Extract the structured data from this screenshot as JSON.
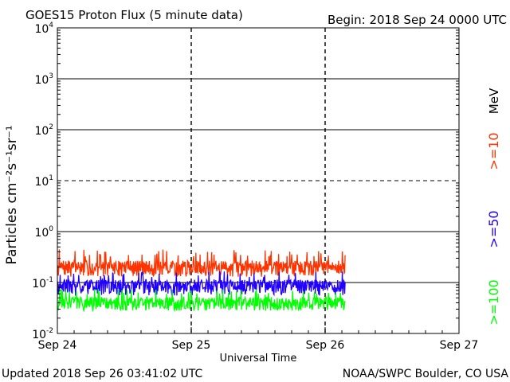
{
  "chart_data": {
    "type": "line",
    "title": "GOES15 Proton Flux (5 minute data)",
    "begin_label": "Begin: 2018 Sep 24 0000 UTC",
    "xlabel": "Universal Time",
    "ylabel": "Particles cm⁻²s⁻¹sr⁻¹",
    "y_scale": "log",
    "ylim": [
      0.01,
      10000
    ],
    "xlim_days": [
      0,
      3
    ],
    "x_ticks": [
      {
        "label": "Sep 24",
        "day": 0
      },
      {
        "label": "Sep 25",
        "day": 1
      },
      {
        "label": "Sep 26",
        "day": 2
      },
      {
        "label": "Sep 27",
        "day": 3
      }
    ],
    "y_ticks": [
      {
        "mantissa": "10",
        "exp": "4",
        "value": 10000
      },
      {
        "mantissa": "10",
        "exp": "3",
        "value": 1000
      },
      {
        "mantissa": "10",
        "exp": "2",
        "value": 100
      },
      {
        "mantissa": "10",
        "exp": "1",
        "value": 10
      },
      {
        "mantissa": "10",
        "exp": "0",
        "value": 1
      },
      {
        "mantissa": "10",
        "exp": "-1",
        "value": 0.1
      },
      {
        "mantissa": "10",
        "exp": "-2",
        "value": 0.01
      }
    ],
    "reference_lines": [
      {
        "value": 10,
        "style": "dashed"
      }
    ],
    "data_end_day": 2.15,
    "series": [
      {
        "name": ">=10 MeV",
        "color": "#ff3300",
        "base": 0.2,
        "spread": 0.35,
        "peak": 0.45,
        "seed": 7
      },
      {
        "name": ">=50 MeV",
        "color": "#2200ff",
        "base": 0.085,
        "spread": 0.35,
        "peak": 0.17,
        "seed": 19
      },
      {
        "name": ">=100 MeV",
        "color": "#00ff00",
        "base": 0.04,
        "spread": 0.3,
        "peak": 0.075,
        "seed": 31
      }
    ],
    "legend": {
      "mev_label": "MeV",
      "items": [
        {
          "label": ">=10",
          "color": "#ff3300"
        },
        {
          "label": ">=50",
          "color": "#2200ff"
        },
        {
          "label": ">=100",
          "color": "#00ff00"
        }
      ]
    }
  },
  "footer": {
    "updated": "Updated 2018 Sep 26 03:41:02 UTC",
    "source": "NOAA/SWPC Boulder, CO USA"
  }
}
